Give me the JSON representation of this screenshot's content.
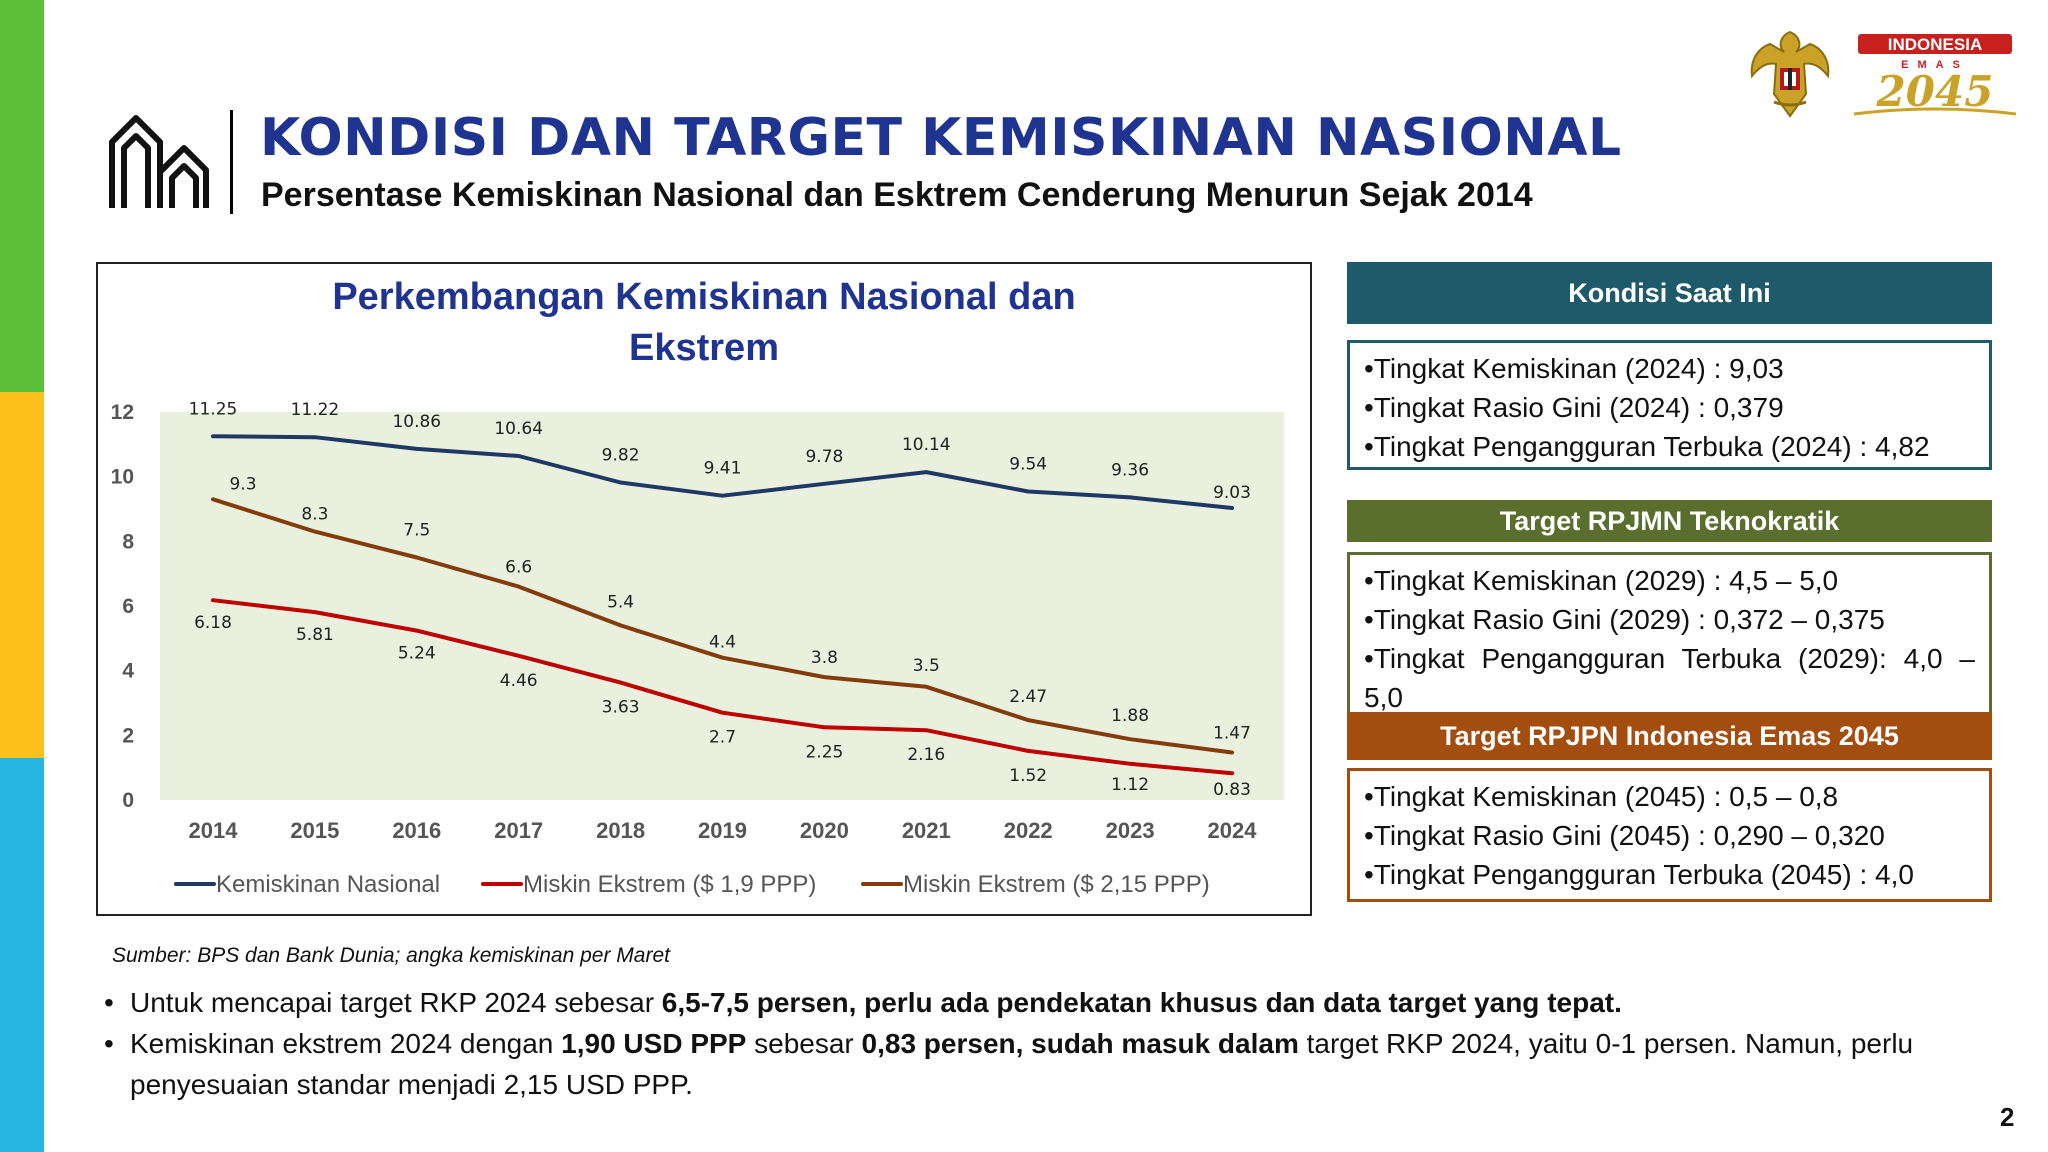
{
  "header": {
    "title": "KONDISI DAN TARGET KEMISKINAN NASIONAL",
    "subtitle": "Persentase Kemiskinan Nasional dan Esktrem Cenderung Menurun Sejak 2014"
  },
  "logos": {
    "emas_top": "INDONESIA",
    "emas_mid": "EMAS",
    "emas_year": "2045"
  },
  "colors": {
    "sidebar": [
      "#5bbf3a",
      "#fcc11a",
      "#27b5e2"
    ],
    "title": "#1f3390",
    "plot_bg": "#e9f1de",
    "panel1": "#1f5a6a",
    "panel2": "#5a6e2e",
    "panel3": "#a34d0e"
  },
  "chart_data": {
    "type": "line",
    "title": "Perkembangan Kemiskinan Nasional dan Ekstrem",
    "x": [
      "2014",
      "2015",
      "2016",
      "2017",
      "2018",
      "2019",
      "2020",
      "2021",
      "2022",
      "2023",
      "2024"
    ],
    "ylim": [
      0,
      12
    ],
    "yticks": [
      "0",
      "2",
      "4",
      "6",
      "8",
      "10",
      "12"
    ],
    "grid": false,
    "legend_position": "bottom",
    "series": [
      {
        "name": "Kemiskinan Nasional",
        "color": "#1f3864",
        "values": [
          11.25,
          11.22,
          10.86,
          10.64,
          9.82,
          9.41,
          9.78,
          10.14,
          9.54,
          9.36,
          9.03
        ],
        "labels": [
          "11.25",
          "11.22",
          "10.86",
          "10.64",
          "9.82",
          "9.41",
          "9.78",
          "10.14",
          "9.54",
          "9.36",
          "9.03"
        ]
      },
      {
        "name": "Miskin Ekstrem ($ 1,9 PPP)",
        "color": "#c00000",
        "values": [
          6.18,
          5.81,
          5.24,
          4.46,
          3.63,
          2.7,
          2.25,
          2.16,
          1.52,
          1.12,
          0.83
        ],
        "labels": [
          "6.18",
          "5.81",
          "5.24",
          "4.46",
          "3.63",
          "2.7",
          "2.25",
          "2.16",
          "1.52",
          "1.12",
          "0.83"
        ]
      },
      {
        "name": "Miskin Ekstrem ($ 2,15 PPP)",
        "color": "#843c0c",
        "values": [
          9.3,
          8.3,
          7.5,
          6.6,
          5.4,
          4.4,
          3.8,
          3.5,
          2.47,
          1.88,
          1.47
        ],
        "labels": [
          "9.3",
          "8.3",
          "7.5",
          "6.6",
          "5.4",
          "4.4",
          "3.8",
          "3.5",
          "2.47",
          "1.88",
          "1.47"
        ]
      }
    ]
  },
  "panels": [
    {
      "heading": "Kondisi Saat Ini",
      "items": [
        "•Tingkat Kemiskinan (2024) : 9,03",
        "•Tingkat Rasio Gini (2024) : 0,379",
        "•Tingkat Pengangguran Terbuka (2024) : 4,82"
      ]
    },
    {
      "heading": "Target RPJMN Teknokratik",
      "items": [
        "•Tingkat Kemiskinan (2029) : 4,5 – 5,0",
        "•Tingkat Rasio Gini (2029) : 0,372 – 0,375",
        "•Tingkat Pengangguran Terbuka (2029): 4,0 – 5,0"
      ]
    },
    {
      "heading": "Target RPJPN Indonesia Emas 2045",
      "items": [
        "•Tingkat Kemiskinan (2045) : 0,5 – 0,8",
        "•Tingkat Rasio Gini (2045) : 0,290 – 0,320",
        "•Tingkat Pengangguran Terbuka (2045) : 4,0"
      ]
    }
  ],
  "source": "Sumber: BPS dan Bank Dunia; angka kemiskinan per Maret",
  "bullets": {
    "b1_pre": "Untuk mencapai target RKP 2024 sebesar ",
    "b1_bold": "6,5-7,5 persen, perlu ada pendekatan khusus dan data target yang tepat.",
    "b2_pre": "Kemiskinan ekstrem 2024 dengan ",
    "b2_bold1": "1,90 USD PPP",
    "b2_mid": " sebesar ",
    "b2_bold2": "0,83 persen, sudah masuk dalam",
    "b2_post": " target RKP 2024, yaitu 0-1 persen. Namun, perlu penyesuaian standar menjadi 2,15 USD PPP."
  },
  "page_number": "2"
}
